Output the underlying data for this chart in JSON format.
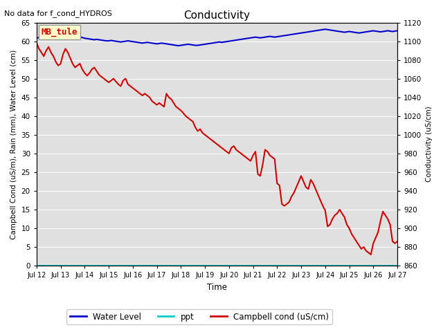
{
  "title": "Conductivity",
  "top_left_text": "No data for f_cond_HYDROS",
  "xlabel": "Time",
  "ylabel_left": "Campbell Cond (uS/m), Rain (mm), Water Level (cm)",
  "ylabel_right": "Conductivity (uS/cm)",
  "xlim": [
    0,
    15
  ],
  "ylim_left": [
    0,
    65
  ],
  "ylim_right": [
    860,
    1120
  ],
  "xtick_labels": [
    "Jul 12",
    "Jul 13",
    "Jul 14",
    "Jul 15",
    "Jul 16",
    "Jul 17",
    "Jul 18",
    "Jul 19",
    "Jul 20",
    "Jul 21",
    "Jul 22",
    "Jul 23",
    "Jul 24",
    "Jul 25",
    "Jul 26",
    "Jul 27"
  ],
  "ytick_left": [
    0,
    5,
    10,
    15,
    20,
    25,
    30,
    35,
    40,
    45,
    50,
    55,
    60,
    65
  ],
  "ytick_right": [
    860,
    880,
    900,
    920,
    940,
    960,
    980,
    1000,
    1020,
    1040,
    1060,
    1080,
    1100,
    1120
  ],
  "annotation_box": "MB_tule",
  "annotation_box_color": "#ffffcc",
  "annotation_box_text_color": "#cc0000",
  "background_color": "#e0e0e0",
  "legend_entries": [
    "Water Level",
    "ppt",
    "Campbell cond (uS/cm)"
  ],
  "legend_colors": [
    "#0000cc",
    "#00cccc",
    "#cc0000"
  ],
  "water_level_color": "#0000cc",
  "ppt_color": "#00cccc",
  "campbell_color": "#cc0000",
  "water_level_x": [
    0.0,
    0.1,
    0.2,
    0.3,
    0.4,
    0.5,
    0.6,
    0.7,
    0.8,
    0.9,
    1.0,
    1.1,
    1.2,
    1.3,
    1.4,
    1.5,
    1.6,
    1.7,
    1.8,
    1.9,
    2.0,
    2.1,
    2.2,
    2.3,
    2.4,
    2.5,
    2.6,
    2.7,
    2.8,
    2.9,
    3.0,
    3.1,
    3.2,
    3.3,
    3.4,
    3.5,
    3.6,
    3.7,
    3.8,
    3.9,
    4.0,
    4.1,
    4.2,
    4.3,
    4.4,
    4.5,
    4.6,
    4.7,
    4.8,
    4.9,
    5.0,
    5.1,
    5.2,
    5.3,
    5.4,
    5.5,
    5.6,
    5.7,
    5.8,
    5.9,
    6.0,
    6.1,
    6.2,
    6.3,
    6.4,
    6.5,
    6.6,
    6.7,
    6.8,
    6.9,
    7.0,
    7.1,
    7.2,
    7.3,
    7.4,
    7.5,
    7.6,
    7.7,
    7.8,
    7.9,
    8.0,
    8.1,
    8.2,
    8.3,
    8.4,
    8.5,
    8.6,
    8.7,
    8.8,
    8.9,
    9.0,
    9.1,
    9.2,
    9.3,
    9.4,
    9.5,
    9.6,
    9.7,
    9.8,
    9.9,
    10.0,
    10.1,
    10.2,
    10.3,
    10.4,
    10.5,
    10.6,
    10.7,
    10.8,
    10.9,
    11.0,
    11.1,
    11.2,
    11.3,
    11.4,
    11.5,
    11.6,
    11.7,
    11.8,
    11.9,
    12.0,
    12.1,
    12.2,
    12.3,
    12.4,
    12.5,
    12.6,
    12.7,
    12.8,
    12.9,
    13.0,
    13.1,
    13.2,
    13.3,
    13.4,
    13.5,
    13.6,
    13.7,
    13.8,
    13.9,
    14.0,
    14.1,
    14.2,
    14.3,
    14.4,
    14.5,
    14.6,
    14.7,
    14.8,
    14.9,
    15.0
  ],
  "water_level_y": [
    60.8,
    61.0,
    61.2,
    61.3,
    61.5,
    61.4,
    61.3,
    61.1,
    61.2,
    61.3,
    61.4,
    61.3,
    61.2,
    61.0,
    60.9,
    60.8,
    60.9,
    61.0,
    61.1,
    61.0,
    60.8,
    60.7,
    60.6,
    60.5,
    60.4,
    60.5,
    60.4,
    60.3,
    60.2,
    60.1,
    60.1,
    60.2,
    60.1,
    60.0,
    59.9,
    59.8,
    59.9,
    60.0,
    60.1,
    60.0,
    59.9,
    59.8,
    59.7,
    59.6,
    59.5,
    59.6,
    59.7,
    59.6,
    59.5,
    59.4,
    59.3,
    59.4,
    59.5,
    59.4,
    59.3,
    59.2,
    59.1,
    59.0,
    58.9,
    58.8,
    58.9,
    59.0,
    59.1,
    59.2,
    59.1,
    59.0,
    58.9,
    58.9,
    59.0,
    59.1,
    59.2,
    59.3,
    59.4,
    59.5,
    59.6,
    59.7,
    59.8,
    59.7,
    59.8,
    59.9,
    60.0,
    60.1,
    60.2,
    60.3,
    60.4,
    60.5,
    60.6,
    60.7,
    60.8,
    60.9,
    61.0,
    61.1,
    61.0,
    60.9,
    61.0,
    61.1,
    61.2,
    61.3,
    61.2,
    61.1,
    61.2,
    61.3,
    61.4,
    61.5,
    61.6,
    61.7,
    61.8,
    61.9,
    62.0,
    62.1,
    62.2,
    62.3,
    62.4,
    62.5,
    62.6,
    62.7,
    62.8,
    62.9,
    63.0,
    63.1,
    63.2,
    63.1,
    63.0,
    62.9,
    62.8,
    62.7,
    62.6,
    62.5,
    62.4,
    62.5,
    62.6,
    62.5,
    62.4,
    62.3,
    62.2,
    62.3,
    62.4,
    62.5,
    62.6,
    62.7,
    62.8,
    62.7,
    62.6,
    62.5,
    62.6,
    62.7,
    62.8,
    62.7,
    62.6,
    62.7,
    62.8
  ],
  "campbell_x": [
    0.0,
    0.1,
    0.2,
    0.3,
    0.4,
    0.5,
    0.6,
    0.7,
    0.8,
    0.9,
    1.0,
    1.1,
    1.2,
    1.3,
    1.4,
    1.5,
    1.6,
    1.7,
    1.8,
    1.9,
    2.0,
    2.1,
    2.2,
    2.3,
    2.4,
    2.5,
    2.6,
    2.7,
    2.8,
    2.9,
    3.0,
    3.1,
    3.2,
    3.3,
    3.4,
    3.5,
    3.6,
    3.7,
    3.8,
    3.9,
    4.0,
    4.1,
    4.2,
    4.3,
    4.4,
    4.5,
    4.6,
    4.7,
    4.8,
    4.9,
    5.0,
    5.1,
    5.2,
    5.3,
    5.4,
    5.5,
    5.6,
    5.7,
    5.8,
    5.9,
    6.0,
    6.1,
    6.2,
    6.3,
    6.4,
    6.5,
    6.6,
    6.7,
    6.8,
    6.9,
    7.0,
    7.1,
    7.2,
    7.3,
    7.4,
    7.5,
    7.6,
    7.7,
    7.8,
    7.9,
    8.0,
    8.1,
    8.2,
    8.3,
    8.4,
    8.5,
    8.6,
    8.7,
    8.8,
    8.9,
    9.0,
    9.1,
    9.2,
    9.3,
    9.4,
    9.5,
    9.6,
    9.7,
    9.8,
    9.9,
    10.0,
    10.1,
    10.2,
    10.3,
    10.4,
    10.5,
    10.6,
    10.7,
    10.8,
    10.9,
    11.0,
    11.1,
    11.2,
    11.3,
    11.4,
    11.5,
    11.6,
    11.7,
    11.8,
    11.9,
    12.0,
    12.1,
    12.2,
    12.3,
    12.4,
    12.5,
    12.6,
    12.7,
    12.8,
    12.9,
    13.0,
    13.1,
    13.2,
    13.3,
    13.4,
    13.5,
    13.6,
    13.7,
    13.8,
    13.9,
    14.0,
    14.1,
    14.2,
    14.3,
    14.4,
    14.5,
    14.6,
    14.7,
    14.8,
    14.9,
    15.0
  ],
  "campbell_y": [
    59.5,
    58.0,
    57.0,
    56.0,
    57.5,
    58.5,
    57.0,
    56.0,
    54.5,
    53.5,
    54.0,
    56.5,
    58.0,
    57.0,
    55.5,
    54.0,
    53.0,
    53.5,
    54.0,
    52.5,
    51.5,
    50.8,
    51.5,
    52.5,
    53.0,
    52.0,
    51.0,
    50.5,
    50.0,
    49.5,
    49.0,
    49.5,
    50.0,
    49.2,
    48.5,
    48.0,
    49.5,
    50.0,
    48.5,
    48.0,
    47.5,
    47.0,
    46.5,
    46.0,
    45.5,
    46.0,
    45.5,
    45.0,
    44.0,
    43.5,
    43.0,
    43.5,
    43.0,
    42.5,
    46.0,
    45.0,
    44.5,
    43.5,
    42.5,
    42.0,
    41.5,
    40.8,
    40.0,
    39.5,
    39.0,
    38.5,
    37.0,
    36.0,
    36.5,
    35.5,
    35.0,
    34.5,
    34.0,
    33.5,
    33.0,
    32.5,
    32.0,
    31.5,
    31.0,
    30.5,
    30.0,
    31.5,
    32.0,
    31.0,
    30.5,
    30.0,
    29.5,
    29.0,
    28.5,
    28.0,
    29.5,
    30.5,
    24.5,
    24.0,
    27.0,
    31.0,
    30.5,
    29.5,
    29.0,
    28.5,
    22.0,
    21.5,
    16.5,
    16.0,
    16.5,
    17.0,
    18.5,
    19.5,
    21.0,
    22.5,
    24.0,
    22.5,
    21.0,
    20.5,
    23.0,
    22.0,
    20.5,
    19.0,
    17.5,
    16.0,
    14.8,
    10.5,
    11.0,
    12.5,
    13.5,
    14.0,
    15.0,
    14.0,
    13.0,
    11.0,
    10.0,
    8.5,
    7.5,
    6.5,
    5.5,
    4.5,
    5.0,
    4.0,
    3.5,
    3.0,
    6.0,
    7.5,
    9.0,
    12.0,
    14.5,
    13.5,
    12.5,
    11.0,
    6.5,
    6.0,
    6.5
  ]
}
